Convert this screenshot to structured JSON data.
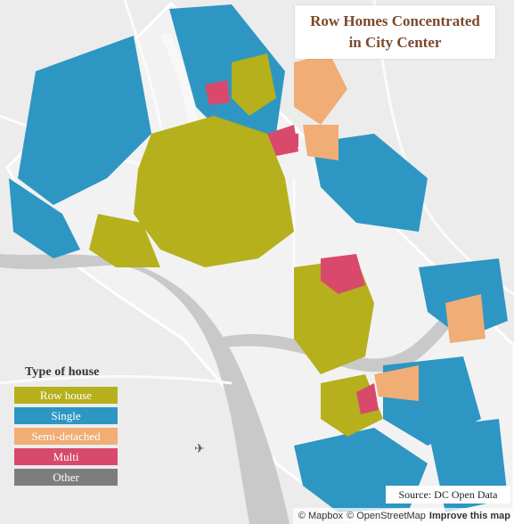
{
  "title": {
    "line1": "Row Homes Concentrated",
    "line2": "in City Center"
  },
  "legend": {
    "title": "Type of house",
    "items": [
      {
        "label": "Row house",
        "color": "#b5b01c"
      },
      {
        "label": "Single",
        "color": "#2e96c3"
      },
      {
        "label": "Semi-detached",
        "color": "#f0ad75"
      },
      {
        "label": "Multi",
        "color": "#d9496c"
      },
      {
        "label": "Other",
        "color": "#7d7d7d"
      }
    ]
  },
  "source": "Source: DC Open Data",
  "attribution": {
    "mapbox": "© Mapbox",
    "osm": "© OpenStreetMap",
    "improve": "Improve this map"
  },
  "map_colors": {
    "land": "#ececec",
    "boundary": "#ffffff",
    "water": "#c9c9c9",
    "parks": "#f7f7f7",
    "roads": "#fafafa"
  }
}
